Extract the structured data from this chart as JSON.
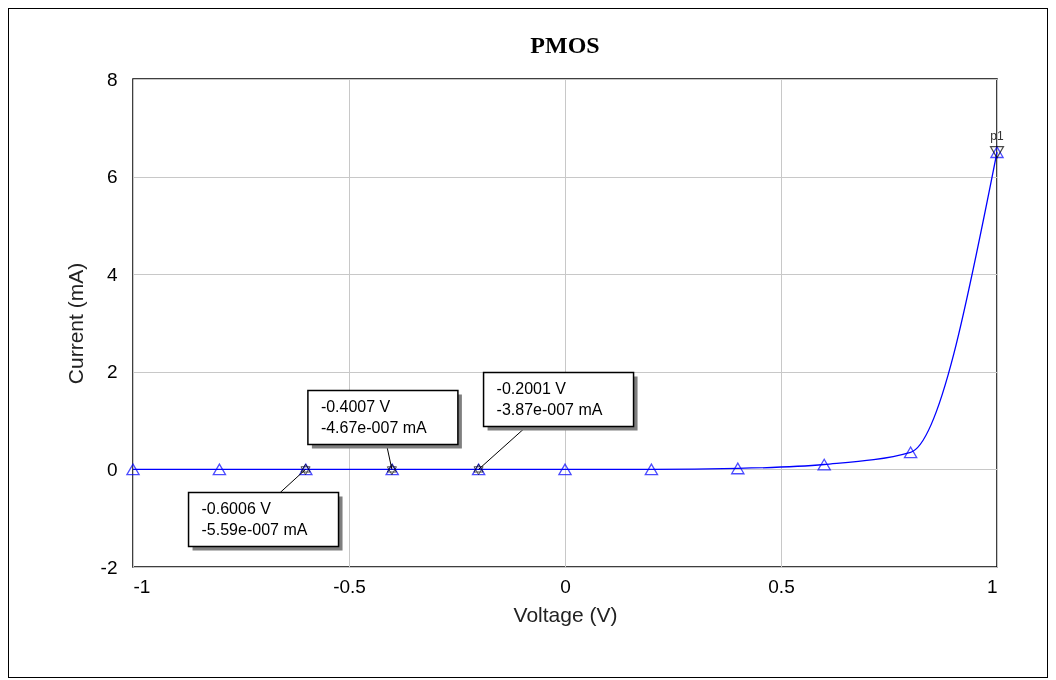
{
  "chart_data": {
    "type": "line",
    "title": "PMOS",
    "xlabel": "Voltage (V)",
    "ylabel": "Current (mA)",
    "x": [
      -1,
      -0.8,
      -0.6,
      -0.4,
      -0.2,
      0,
      0.2,
      0.4,
      0.6,
      0.8,
      1
    ],
    "series": [
      {
        "color": "#0000ff",
        "values": [
          0,
          0,
          0,
          0,
          0,
          0,
          0,
          0.02,
          0.1,
          0.35,
          6.5
        ]
      }
    ],
    "xlim": [
      -1,
      1
    ],
    "xticks": [
      -1,
      -0.5,
      0,
      0.5,
      1
    ],
    "ylim": [
      -2,
      8
    ],
    "yticks": [
      -2,
      0,
      2,
      4,
      6,
      8
    ],
    "grid": true,
    "marker": "triangle",
    "line_style": "solid",
    "annotations": [
      {
        "text": "-0.6006 V\n-5.59e-007 mA",
        "x": -0.6006,
        "y": 0
      },
      {
        "text": "-0.4007 V\n-4.67e-007 mA",
        "x": -0.4007,
        "y": 0
      },
      {
        "text": "-0.2001 V\n-3.87e-007 mA",
        "x": -0.2001,
        "y": 0
      },
      {
        "text": "p1",
        "x": 1,
        "y": 6.5
      }
    ]
  }
}
